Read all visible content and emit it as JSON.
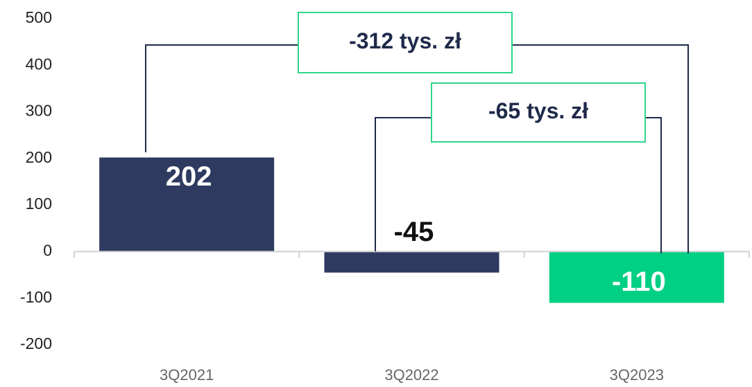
{
  "chart_data": {
    "type": "bar",
    "categories": [
      "3Q2021",
      "3Q2022",
      "3Q2023"
    ],
    "values": [
      202,
      -45,
      -110
    ],
    "colors": [
      "#2e3a5f",
      "#2e3a5f",
      "#00d084"
    ],
    "ylim": [
      -200,
      500
    ],
    "yticks": [
      -200,
      -100,
      0,
      100,
      200,
      300,
      400,
      500
    ],
    "annotations": [
      {
        "text": "-312 tys. zł"
      },
      {
        "text": "-65 tys. zł"
      }
    ]
  }
}
